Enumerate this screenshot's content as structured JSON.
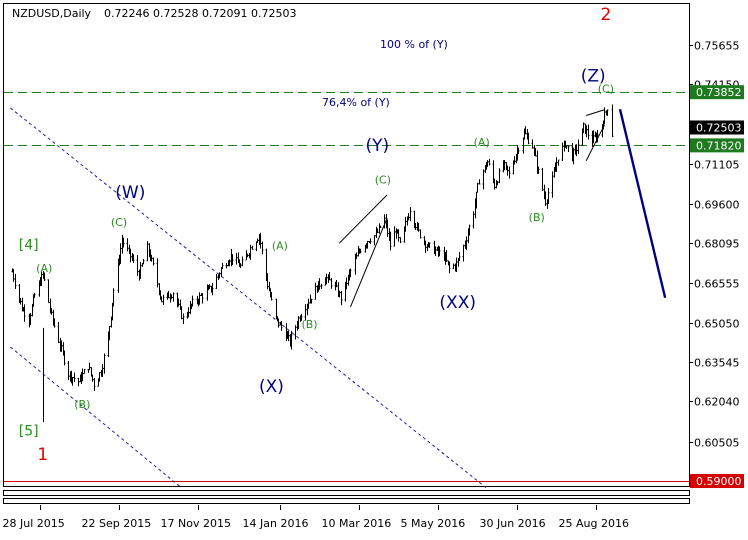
{
  "header": {
    "symbol": "NZDUSD,Daily",
    "ohlc": "0.72246 0.72528 0.72091 0.72503"
  },
  "chart_data": {
    "type": "candlestick",
    "symbol": "NZDUSD",
    "timeframe": "Daily",
    "open": 0.72246,
    "high": 0.72528,
    "low": 0.72091,
    "close": 0.72503,
    "ylim": [
      0.5881,
      0.7722
    ],
    "y_ticks": [
      "0.75655",
      "0.74150",
      "0.73852",
      "0.72503",
      "0.71820",
      "0.71105",
      "0.69600",
      "0.68095",
      "0.66555",
      "0.65050",
      "0.63545",
      "0.62040",
      "0.60505",
      "0.59000"
    ],
    "x_ticks": [
      "28 Jul 2015",
      "22 Sep 2015",
      "17 Nov 2015",
      "14 Jan 2016",
      "10 Mar 2016",
      "5 May 2016",
      "30 Jun 2016",
      "25 Aug 2016"
    ],
    "x_tick_dates": [
      "2015-07-28",
      "2015-09-22",
      "2015-11-17",
      "2016-01-14",
      "2016-03-10",
      "2016-05-05",
      "2016-06-30",
      "2016-08-25"
    ],
    "price_levels": [
      {
        "label": "0.73852",
        "value": 0.73852,
        "style": "dashed",
        "color": "#1e7a1e"
      },
      {
        "label": "0.71820",
        "value": 0.7182,
        "style": "dashed",
        "color": "#1e7a1e"
      },
      {
        "label": "0.59000",
        "value": 0.59,
        "style": "solid",
        "color": "#cc0000"
      }
    ],
    "current_price": {
      "label": "0.72503",
      "value": 0.72503
    },
    "fib_labels": [
      {
        "text": "100 % of (Y)",
        "color": "#000080"
      },
      {
        "text": "76,4% of (Y)",
        "color": "#000080"
      }
    ],
    "wave_labels": [
      {
        "text": "1",
        "date": "2015-07-30",
        "price": 0.6,
        "color": "#e00000",
        "size": "big"
      },
      {
        "text": "2",
        "date": "2016-09-01",
        "price": 0.768,
        "color": "#e00000",
        "size": "big"
      },
      {
        "text": "[4]",
        "date": "2015-07-20",
        "price": 0.68,
        "color": "#2e8b22",
        "size": "mid"
      },
      {
        "text": "[5]",
        "date": "2015-07-20",
        "price": 0.609,
        "color": "#2e8b22",
        "size": "mid"
      },
      {
        "text": "(W)",
        "date": "2015-09-30",
        "price": 0.7,
        "color": "#000080",
        "size": "big"
      },
      {
        "text": "(X)",
        "date": "2016-01-08",
        "price": 0.626,
        "color": "#000080",
        "size": "big"
      },
      {
        "text": "(Y)",
        "date": "2016-03-23",
        "price": 0.718,
        "color": "#000080",
        "size": "big"
      },
      {
        "text": "(XX)",
        "date": "2016-05-19",
        "price": 0.658,
        "color": "#000080",
        "size": "big"
      },
      {
        "text": "(Z)",
        "date": "2016-08-23",
        "price": 0.7445,
        "color": "#000080",
        "size": "big"
      },
      {
        "text": "(A)",
        "date": "2015-07-31",
        "price": 0.671,
        "color": "#2e8b22",
        "size": "small"
      },
      {
        "text": "(C)",
        "date": "2015-09-22",
        "price": 0.6885,
        "color": "#2e8b22",
        "size": "small"
      },
      {
        "text": "(B)",
        "date": "2015-08-27",
        "price": 0.619,
        "color": "#2e8b22",
        "size": "small"
      },
      {
        "text": "(A)",
        "date": "2016-01-14",
        "price": 0.6795,
        "color": "#2e8b22",
        "size": "small"
      },
      {
        "text": "(B)",
        "date": "2016-02-04",
        "price": 0.6495,
        "color": "#2e8b22",
        "size": "small"
      },
      {
        "text": "(C)",
        "date": "2016-03-27",
        "price": 0.7048,
        "color": "#2e8b22",
        "size": "small"
      },
      {
        "text": "(A)",
        "date": "2016-06-05",
        "price": 0.7191,
        "color": "#2e8b22",
        "size": "small"
      },
      {
        "text": "(B)",
        "date": "2016-07-14",
        "price": 0.6905,
        "color": "#2e8b22",
        "size": "small"
      },
      {
        "text": "(C)",
        "date": "2016-09-01",
        "price": 0.7396,
        "color": "#2e8b22",
        "size": "small"
      }
    ],
    "series_anchors": [
      [
        "2015-07-08",
        0.67
      ],
      [
        "2015-07-15",
        0.656
      ],
      [
        "2015-07-20",
        0.652
      ],
      [
        "2015-07-24",
        0.661
      ],
      [
        "2015-07-30",
        0.669
      ],
      [
        "2015-08-05",
        0.653
      ],
      [
        "2015-08-11",
        0.642
      ],
      [
        "2015-08-17",
        0.631
      ],
      [
        "2015-08-24",
        0.628
      ],
      [
        "2015-08-31",
        0.634
      ],
      [
        "2015-09-04",
        0.627
      ],
      [
        "2015-09-09",
        0.632
      ],
      [
        "2015-09-14",
        0.645
      ],
      [
        "2015-09-18",
        0.663
      ],
      [
        "2015-09-24",
        0.682
      ],
      [
        "2015-09-29",
        0.677
      ],
      [
        "2015-10-06",
        0.669
      ],
      [
        "2015-10-12",
        0.679
      ],
      [
        "2015-10-16",
        0.672
      ],
      [
        "2015-10-22",
        0.659
      ],
      [
        "2015-10-30",
        0.662
      ],
      [
        "2015-11-06",
        0.652
      ],
      [
        "2015-11-13",
        0.658
      ],
      [
        "2015-11-20",
        0.661
      ],
      [
        "2015-11-27",
        0.664
      ],
      [
        "2015-12-03",
        0.671
      ],
      [
        "2015-12-10",
        0.676
      ],
      [
        "2015-12-17",
        0.672
      ],
      [
        "2015-12-24",
        0.679
      ],
      [
        "2015-12-30",
        0.684
      ],
      [
        "2016-01-05",
        0.665
      ],
      [
        "2016-01-11",
        0.652
      ],
      [
        "2016-01-18",
        0.646
      ],
      [
        "2016-01-21",
        0.643
      ],
      [
        "2016-01-27",
        0.652
      ],
      [
        "2016-02-02",
        0.658
      ],
      [
        "2016-02-09",
        0.664
      ],
      [
        "2016-02-15",
        0.668
      ],
      [
        "2016-02-22",
        0.664
      ],
      [
        "2016-02-26",
        0.66
      ],
      [
        "2016-03-03",
        0.669
      ],
      [
        "2016-03-10",
        0.678
      ],
      [
        "2016-03-16",
        0.682
      ],
      [
        "2016-03-22",
        0.684
      ],
      [
        "2016-03-28",
        0.69
      ],
      [
        "2016-04-01",
        0.68
      ],
      [
        "2016-04-05",
        0.686
      ],
      [
        "2016-04-08",
        0.68
      ],
      [
        "2016-04-15",
        0.694
      ],
      [
        "2016-04-21",
        0.685
      ],
      [
        "2016-04-27",
        0.68
      ],
      [
        "2016-05-03",
        0.678
      ],
      [
        "2016-05-09",
        0.676
      ],
      [
        "2016-05-13",
        0.671
      ],
      [
        "2016-05-18",
        0.673
      ],
      [
        "2016-05-24",
        0.681
      ],
      [
        "2016-05-30",
        0.693
      ],
      [
        "2016-06-03",
        0.705
      ],
      [
        "2016-06-09",
        0.712
      ],
      [
        "2016-06-14",
        0.703
      ],
      [
        "2016-06-20",
        0.711
      ],
      [
        "2016-06-24",
        0.707
      ],
      [
        "2016-06-29",
        0.715
      ],
      [
        "2016-07-05",
        0.723
      ],
      [
        "2016-07-11",
        0.718
      ],
      [
        "2016-07-15",
        0.708
      ],
      [
        "2016-07-20",
        0.697
      ],
      [
        "2016-07-25",
        0.705
      ],
      [
        "2016-07-29",
        0.714
      ],
      [
        "2016-08-03",
        0.719
      ],
      [
        "2016-08-08",
        0.714
      ],
      [
        "2016-08-11",
        0.717
      ],
      [
        "2016-08-16",
        0.725
      ],
      [
        "2016-08-22",
        0.72
      ],
      [
        "2016-08-26",
        0.722
      ],
      [
        "2016-08-30",
        0.728
      ],
      [
        "2016-09-02",
        0.733
      ],
      [
        "2016-09-05",
        0.7225
      ]
    ],
    "annotation_lines": [
      {
        "name": "forecast-line",
        "color": "#000080",
        "style": "solid",
        "from": [
          "2016-09-11",
          0.732
        ],
        "to": [
          "2016-10-13",
          0.66
        ]
      },
      {
        "name": "channel-upper-line",
        "color": "#1c1ca8",
        "style": "dashed",
        "from": [
          "2015-07-07",
          0.7325
        ],
        "to": [
          "2016-06-08",
          0.5875
        ]
      },
      {
        "name": "channel-lower-line",
        "color": "#1c1ca8",
        "style": "dashed",
        "from": [
          "2015-07-07",
          0.6412
        ],
        "to": [
          "2015-11-05",
          0.5875
        ]
      },
      {
        "name": "wedge-upper-line",
        "color": "#000000",
        "style": "solid",
        "from": [
          "2016-02-25",
          0.6808
        ],
        "to": [
          "2016-03-30",
          0.6993
        ]
      },
      {
        "name": "wedge-lower-line",
        "color": "#000000",
        "style": "solid",
        "from": [
          "2016-03-04",
          0.6565
        ],
        "to": [
          "2016-03-30",
          0.6905
        ]
      },
      {
        "name": "z-wedge-upper-line",
        "color": "#000000",
        "style": "solid",
        "from": [
          "2016-08-18",
          0.7296
        ],
        "to": [
          "2016-08-31",
          0.7318
        ]
      },
      {
        "name": "z-wedge-lower-line",
        "color": "#000000",
        "style": "solid",
        "from": [
          "2016-08-18",
          0.7123
        ],
        "to": [
          "2016-08-31",
          0.726
        ]
      }
    ]
  }
}
